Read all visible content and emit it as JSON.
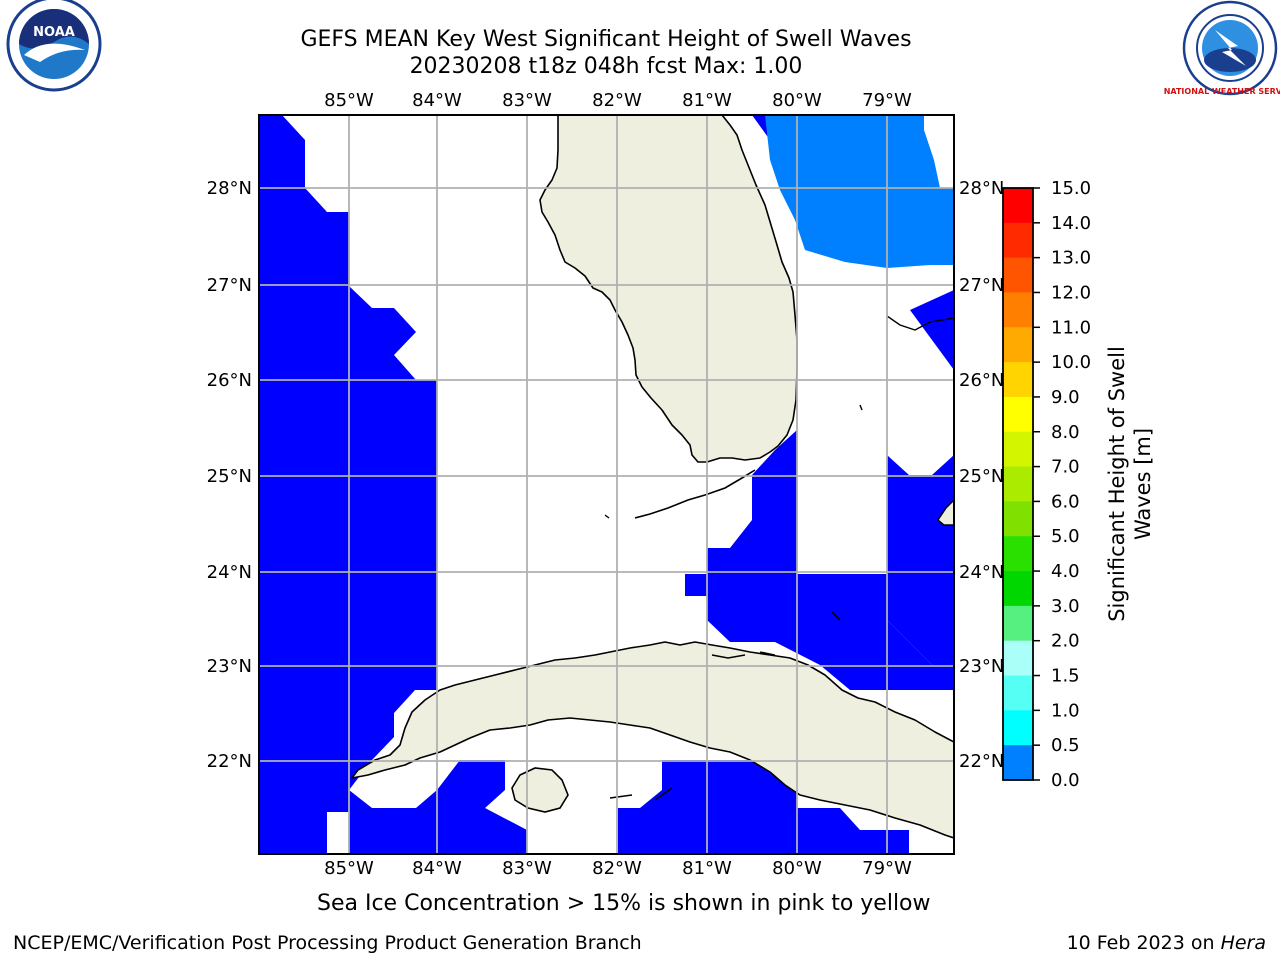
{
  "title_line1": "GEFS MEAN Key West Significant Height of Swell Waves",
  "title_line2": "20230208 t18z 048h fcst   Max: 1.00",
  "lon_labels": [
    "85°W",
    "84°W",
    "83°W",
    "82°W",
    "81°W",
    "80°W",
    "79°W"
  ],
  "lat_labels": [
    "28°N",
    "27°N",
    "26°N",
    "25°N",
    "24°N",
    "23°N",
    "22°N"
  ],
  "colorbar": {
    "label_line1": "Significant Height of Swell",
    "label_line2": "Waves [m]",
    "ticks": [
      "15.0",
      "14.0",
      "13.0",
      "12.0",
      "11.0",
      "10.0",
      "9.0",
      "8.0",
      "7.0",
      "6.0",
      "5.0",
      "4.0",
      "3.0",
      "2.0",
      "1.5",
      "1.0",
      "0.5",
      "0.0"
    ],
    "colors": [
      "#ff0000",
      "#ff2a00",
      "#ff5500",
      "#ff8000",
      "#ffaa00",
      "#ffd400",
      "#ffff00",
      "#d4f500",
      "#aaeb00",
      "#80e000",
      "#2ae000",
      "#00d700",
      "#55f080",
      "#aafff8",
      "#55fff4",
      "#00ffff",
      "#0080ff",
      "#0000ff"
    ]
  },
  "sea_ice_note": "Sea Ice Concentration > 15% is shown in pink to yellow",
  "footer_left": "NCEP/EMC/Verification Post Processing Product Generation Branch",
  "footer_date": "10 Feb 2023 on ",
  "footer_host": "Hera",
  "logos": {
    "noaa": "NOAA",
    "nws": "NATIONAL WEATHER SERVICE"
  },
  "colors": {
    "swell_low": "#0000ff",
    "swell_mid": "#0080ff",
    "land": "#efefdf",
    "grid": "#b0b0b0"
  }
}
